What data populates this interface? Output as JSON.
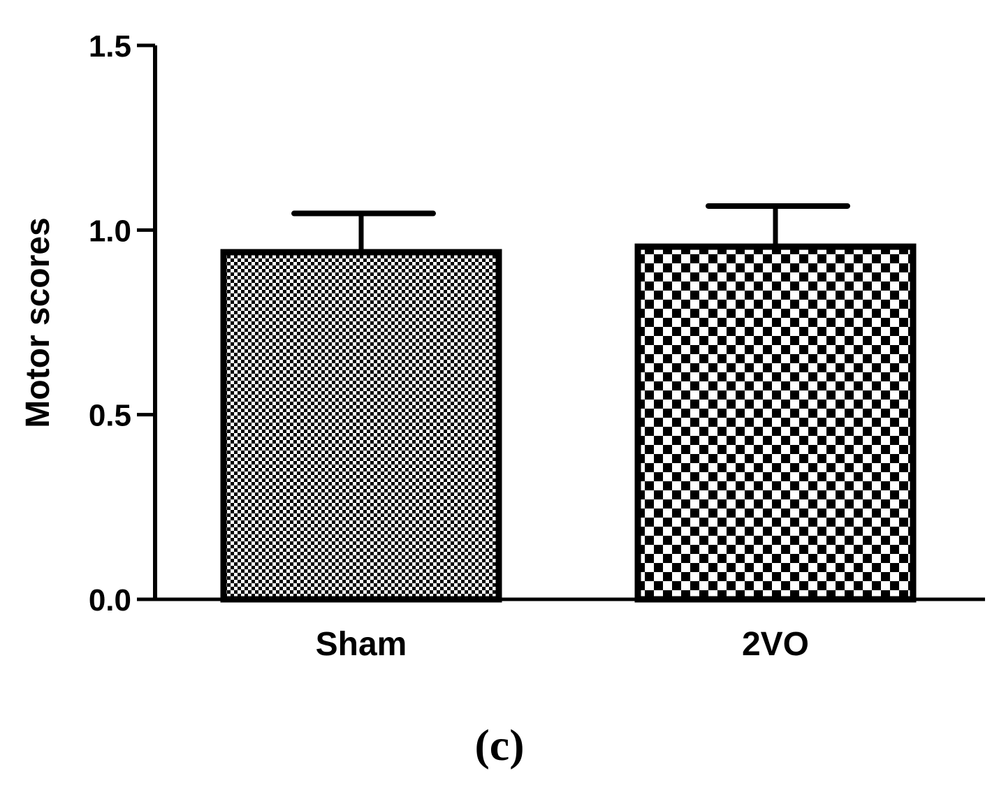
{
  "chart_data": {
    "type": "bar",
    "categories": [
      "Sham",
      "2VO"
    ],
    "values": [
      0.94,
      0.955
    ],
    "errors": [
      0.105,
      0.11
    ],
    "ylabel": "Motor scores",
    "ylim": [
      0,
      1.5
    ],
    "yticks": [
      "0.0",
      "0.5",
      "1.0",
      "1.5"
    ],
    "patterns": [
      "fine-checker",
      "coarse-checker"
    ],
    "colors": {
      "bar_fill": "#ffffff",
      "pattern": "#000000",
      "stroke": "#000000"
    }
  },
  "panel_label": "(c)"
}
